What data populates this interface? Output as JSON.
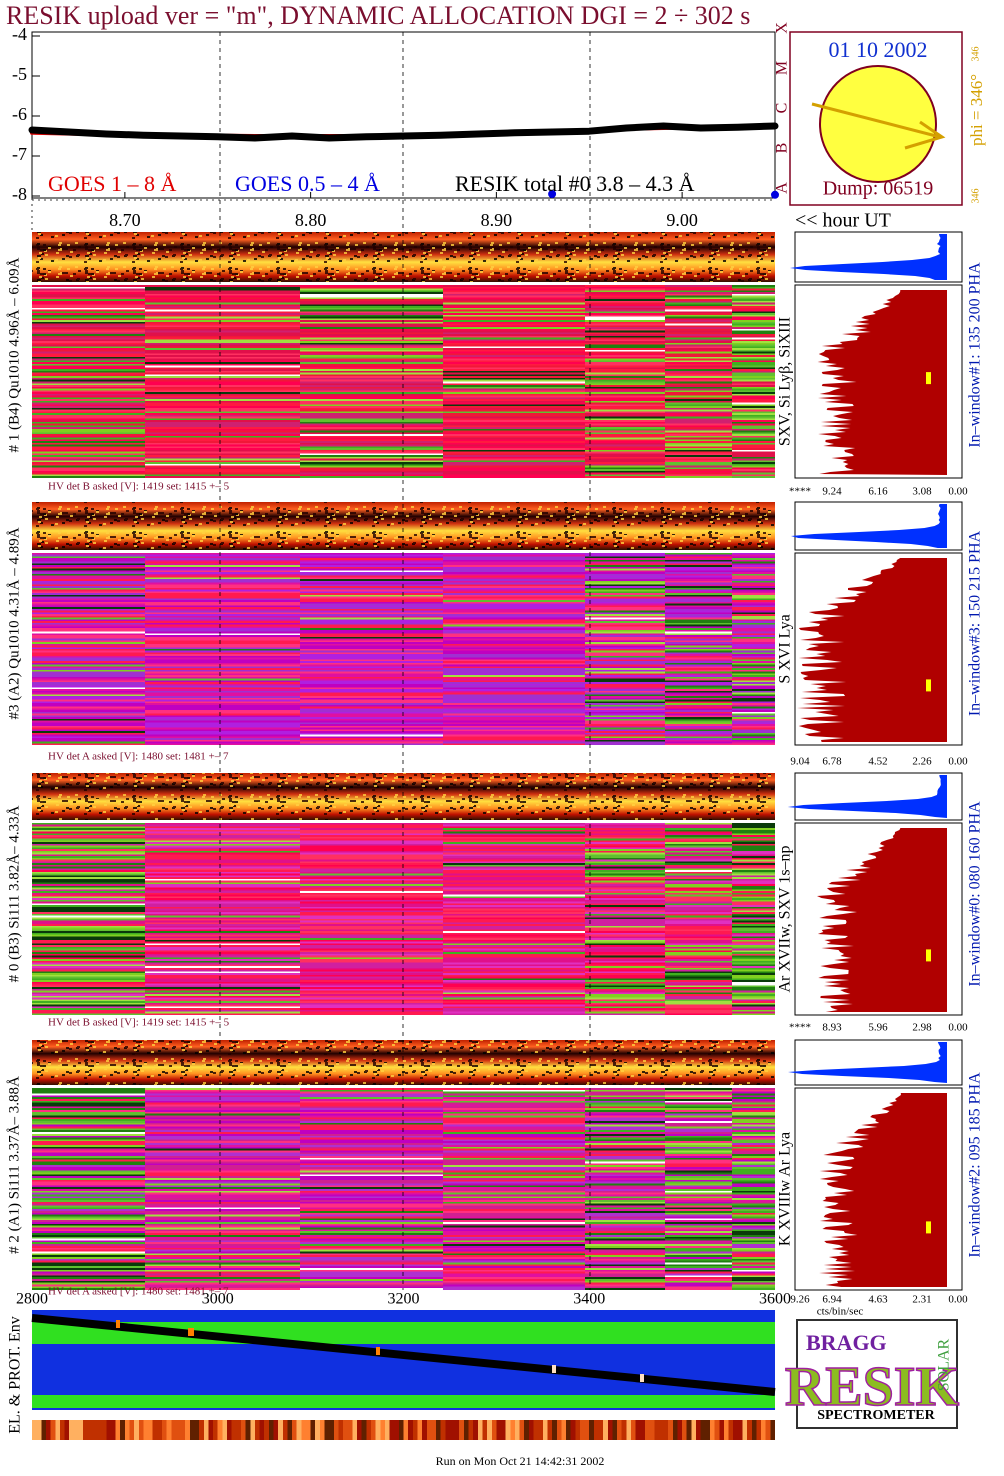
{
  "title": "RESIK upload ver = \"m\", DYNAMIC ALLOCATION  DGI =   2 ÷ 302 s",
  "chart_data": {
    "type": "line",
    "x": [
      8.65,
      8.67,
      8.69,
      8.71,
      8.73,
      8.75,
      8.77,
      8.79,
      8.81,
      8.83,
      8.85,
      8.87,
      8.89,
      8.91,
      8.93,
      8.95,
      8.97,
      8.99,
      9.01,
      9.03,
      9.05
    ],
    "xlim": [
      8.65,
      9.05
    ],
    "xticks": [
      {
        "value": 8.7,
        "label": "8.70"
      },
      {
        "value": 8.8,
        "label": "8.80"
      },
      {
        "value": 8.9,
        "label": "8.90"
      },
      {
        "value": 9.0,
        "label": "9.00"
      }
    ],
    "x_label": "<< hour UT",
    "ylim": [
      -8,
      -4
    ],
    "yticks": [
      -4,
      -5,
      -6,
      -7,
      -8
    ],
    "class_letters": [
      "A",
      "B",
      "C",
      "M",
      "X"
    ],
    "series": [
      {
        "name": "GOES 1 – 8 Å",
        "color": "#e00000",
        "values": [
          -6.42,
          -6.44,
          -6.46,
          -6.47,
          -6.48,
          -6.49,
          -6.5,
          -6.5,
          -6.5,
          -6.5,
          -6.49,
          -6.47,
          -6.45,
          -6.42,
          -6.38,
          -6.35,
          -6.32,
          -6.3,
          -6.28,
          -6.27,
          -6.25
        ]
      },
      {
        "name": "GOES 0.5 – 4 Å",
        "color": "#0000e0",
        "values": [
          null,
          null,
          null,
          null,
          null,
          null,
          null,
          null,
          null,
          null,
          null,
          null,
          null,
          null,
          -7.95,
          null,
          null,
          null,
          null,
          null,
          -7.97
        ]
      },
      {
        "name": "RESIK total #0  3.8 – 4.3 Å",
        "color": "#000000",
        "values": [
          -6.35,
          -6.4,
          -6.45,
          -6.48,
          -6.5,
          -6.52,
          -6.55,
          -6.5,
          -6.55,
          -6.52,
          -6.5,
          -6.48,
          -6.45,
          -6.42,
          -6.4,
          -6.38,
          -6.3,
          -6.25,
          -6.3,
          -6.28,
          -6.25
        ]
      }
    ]
  },
  "sun": {
    "date": "01 10 2002",
    "phi": "phi = 346°",
    "phi_small": "346",
    "phi_bottom": "346",
    "dump": "Dump: 06519"
  },
  "panels": [
    {
      "label": "# 1 (B4) Qu1010 4.96Å – 6.09Å",
      "hv": "HV det B asked [V]:  1419 set:  1415 +–    5",
      "lines": "SXV, Si Lyβ, SiXIII",
      "window": "In–window#1:  135 200 PHA",
      "hist_ticks": [
        "****",
        "9.24",
        "6.16",
        "3.08",
        "0.00"
      ]
    },
    {
      "label": "#3 (A2) Qu1010  4.31Å – 4.89Å",
      "hv": "HV det A asked [V]:  1480 set:  1481 +–    7",
      "lines": "S XVI Lya",
      "window": "In–window#3:  150 215 PHA",
      "hist_ticks": [
        "9.04",
        "6.78",
        "4.52",
        "2.26",
        "0.00"
      ]
    },
    {
      "label": "# 0 (B3) Si111  3.82Å– 4.33Å",
      "hv": "HV det B asked [V]:  1419 set:  1415 +–    5",
      "lines": "Ar XVIIw,  SXV 1s–np",
      "window": "In–window#0:  080 160 PHA",
      "hist_ticks": [
        "****",
        "8.93",
        "5.96",
        "2.98",
        "0.00"
      ]
    },
    {
      "label": "# 2 (A1) Si111  3.37Å– 3.88Å",
      "hv": "HV det A asked [V]:  1480 set:  1481 +–    7",
      "lines": "K XVIIIw   Ar Lya",
      "window": "In–window#2:  095 185 PHA",
      "hist_ticks": [
        "9.26",
        "6.94",
        "4.63",
        "2.31",
        "0.00"
      ]
    }
  ],
  "hist_axis_label": "cts/bin/sec",
  "env": {
    "label": "EL. & PROT. Env",
    "xticks": [
      "2800",
      "3000",
      "3200",
      "3400",
      "3600"
    ]
  },
  "logo": {
    "top": "BRAGG",
    "main": "RESIK",
    "side": "SOLAR",
    "bottom": "SPECTROMETER"
  },
  "footer": "Run on Mon Oct 21 14:42:31 2002"
}
